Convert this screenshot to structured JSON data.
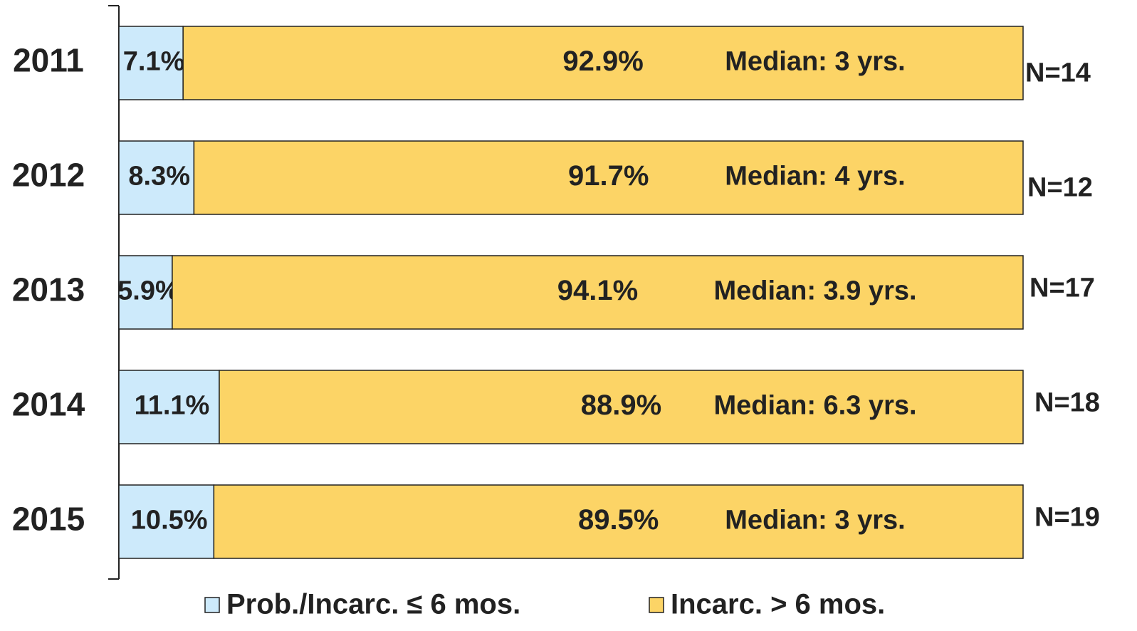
{
  "chart_data": {
    "type": "stacked_bar_horizontal",
    "categories": [
      "2011",
      "2012",
      "2013",
      "2014",
      "2015"
    ],
    "xlim": [
      0,
      100
    ],
    "series": [
      {
        "name": "Prob./Incarc. ≤ 6 mos.",
        "color": "#cdeafb",
        "values": [
          7.1,
          8.3,
          5.9,
          11.1,
          10.5
        ],
        "value_labels": [
          "7.1%",
          "8.3%",
          "5.9%",
          "11.1%",
          "10.5%"
        ]
      },
      {
        "name": "Incarc. > 6 mos.",
        "color": "#fcd466",
        "values": [
          92.9,
          91.7,
          94.1,
          88.9,
          89.5
        ],
        "value_labels": [
          "92.9%",
          "91.7%",
          "94.1%",
          "88.9%",
          "89.5%"
        ]
      }
    ],
    "median_labels": [
      "Median: 3 yrs.",
      "Median: 4 yrs.",
      "Median: 3.9 yrs.",
      "Median: 6.3 yrs.",
      "Median: 3 yrs."
    ],
    "n_labels": [
      "N=14",
      "N=12",
      "N=17",
      "N=18",
      "N=19"
    ]
  }
}
